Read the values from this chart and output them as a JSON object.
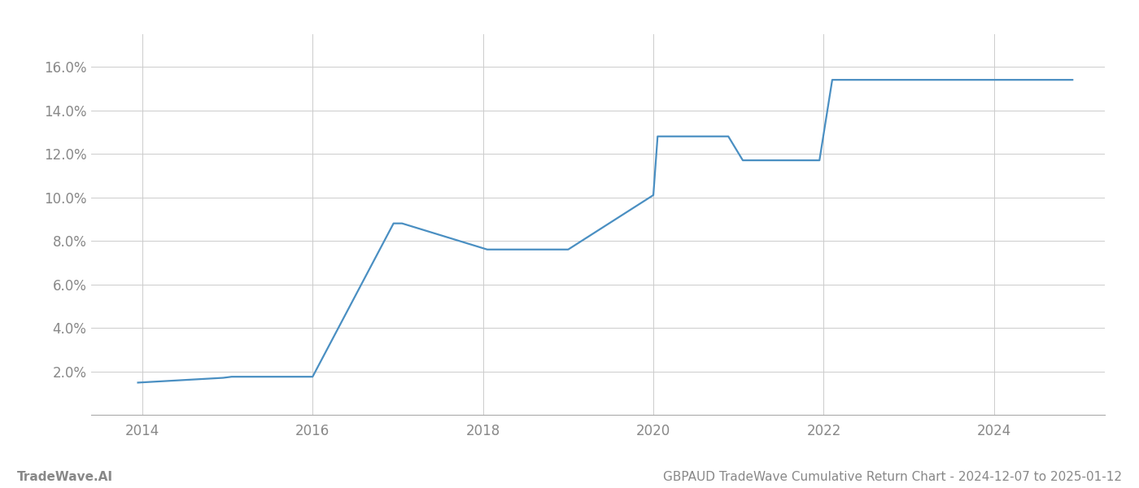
{
  "x_years": [
    2013.95,
    2014.95,
    2015.05,
    2016.0,
    2016.95,
    2017.05,
    2018.05,
    2019.0,
    2020.0,
    2020.05,
    2020.88,
    2021.05,
    2021.95,
    2022.1,
    2023.0,
    2024.0,
    2024.92
  ],
  "y_values": [
    0.0148,
    0.017,
    0.0175,
    0.0175,
    0.088,
    0.088,
    0.076,
    0.076,
    0.101,
    0.128,
    0.128,
    0.117,
    0.117,
    0.154,
    0.154,
    0.154,
    0.154
  ],
  "line_color": "#4a8fc2",
  "line_width": 1.6,
  "xlim": [
    2013.4,
    2025.3
  ],
  "ylim": [
    0.0,
    0.175
  ],
  "yticks": [
    0.02,
    0.04,
    0.06,
    0.08,
    0.1,
    0.12,
    0.14,
    0.16
  ],
  "xticks": [
    2014,
    2016,
    2018,
    2020,
    2022,
    2024
  ],
  "grid_color": "#cccccc",
  "grid_linestyle": "-",
  "background_color": "#ffffff",
  "tick_color": "#888888",
  "tick_fontsize": 12,
  "footer_left": "TradeWave.AI",
  "footer_right": "GBPAUD TradeWave Cumulative Return Chart - 2024-12-07 to 2025-01-12",
  "footer_fontsize": 11,
  "footer_color": "#888888"
}
